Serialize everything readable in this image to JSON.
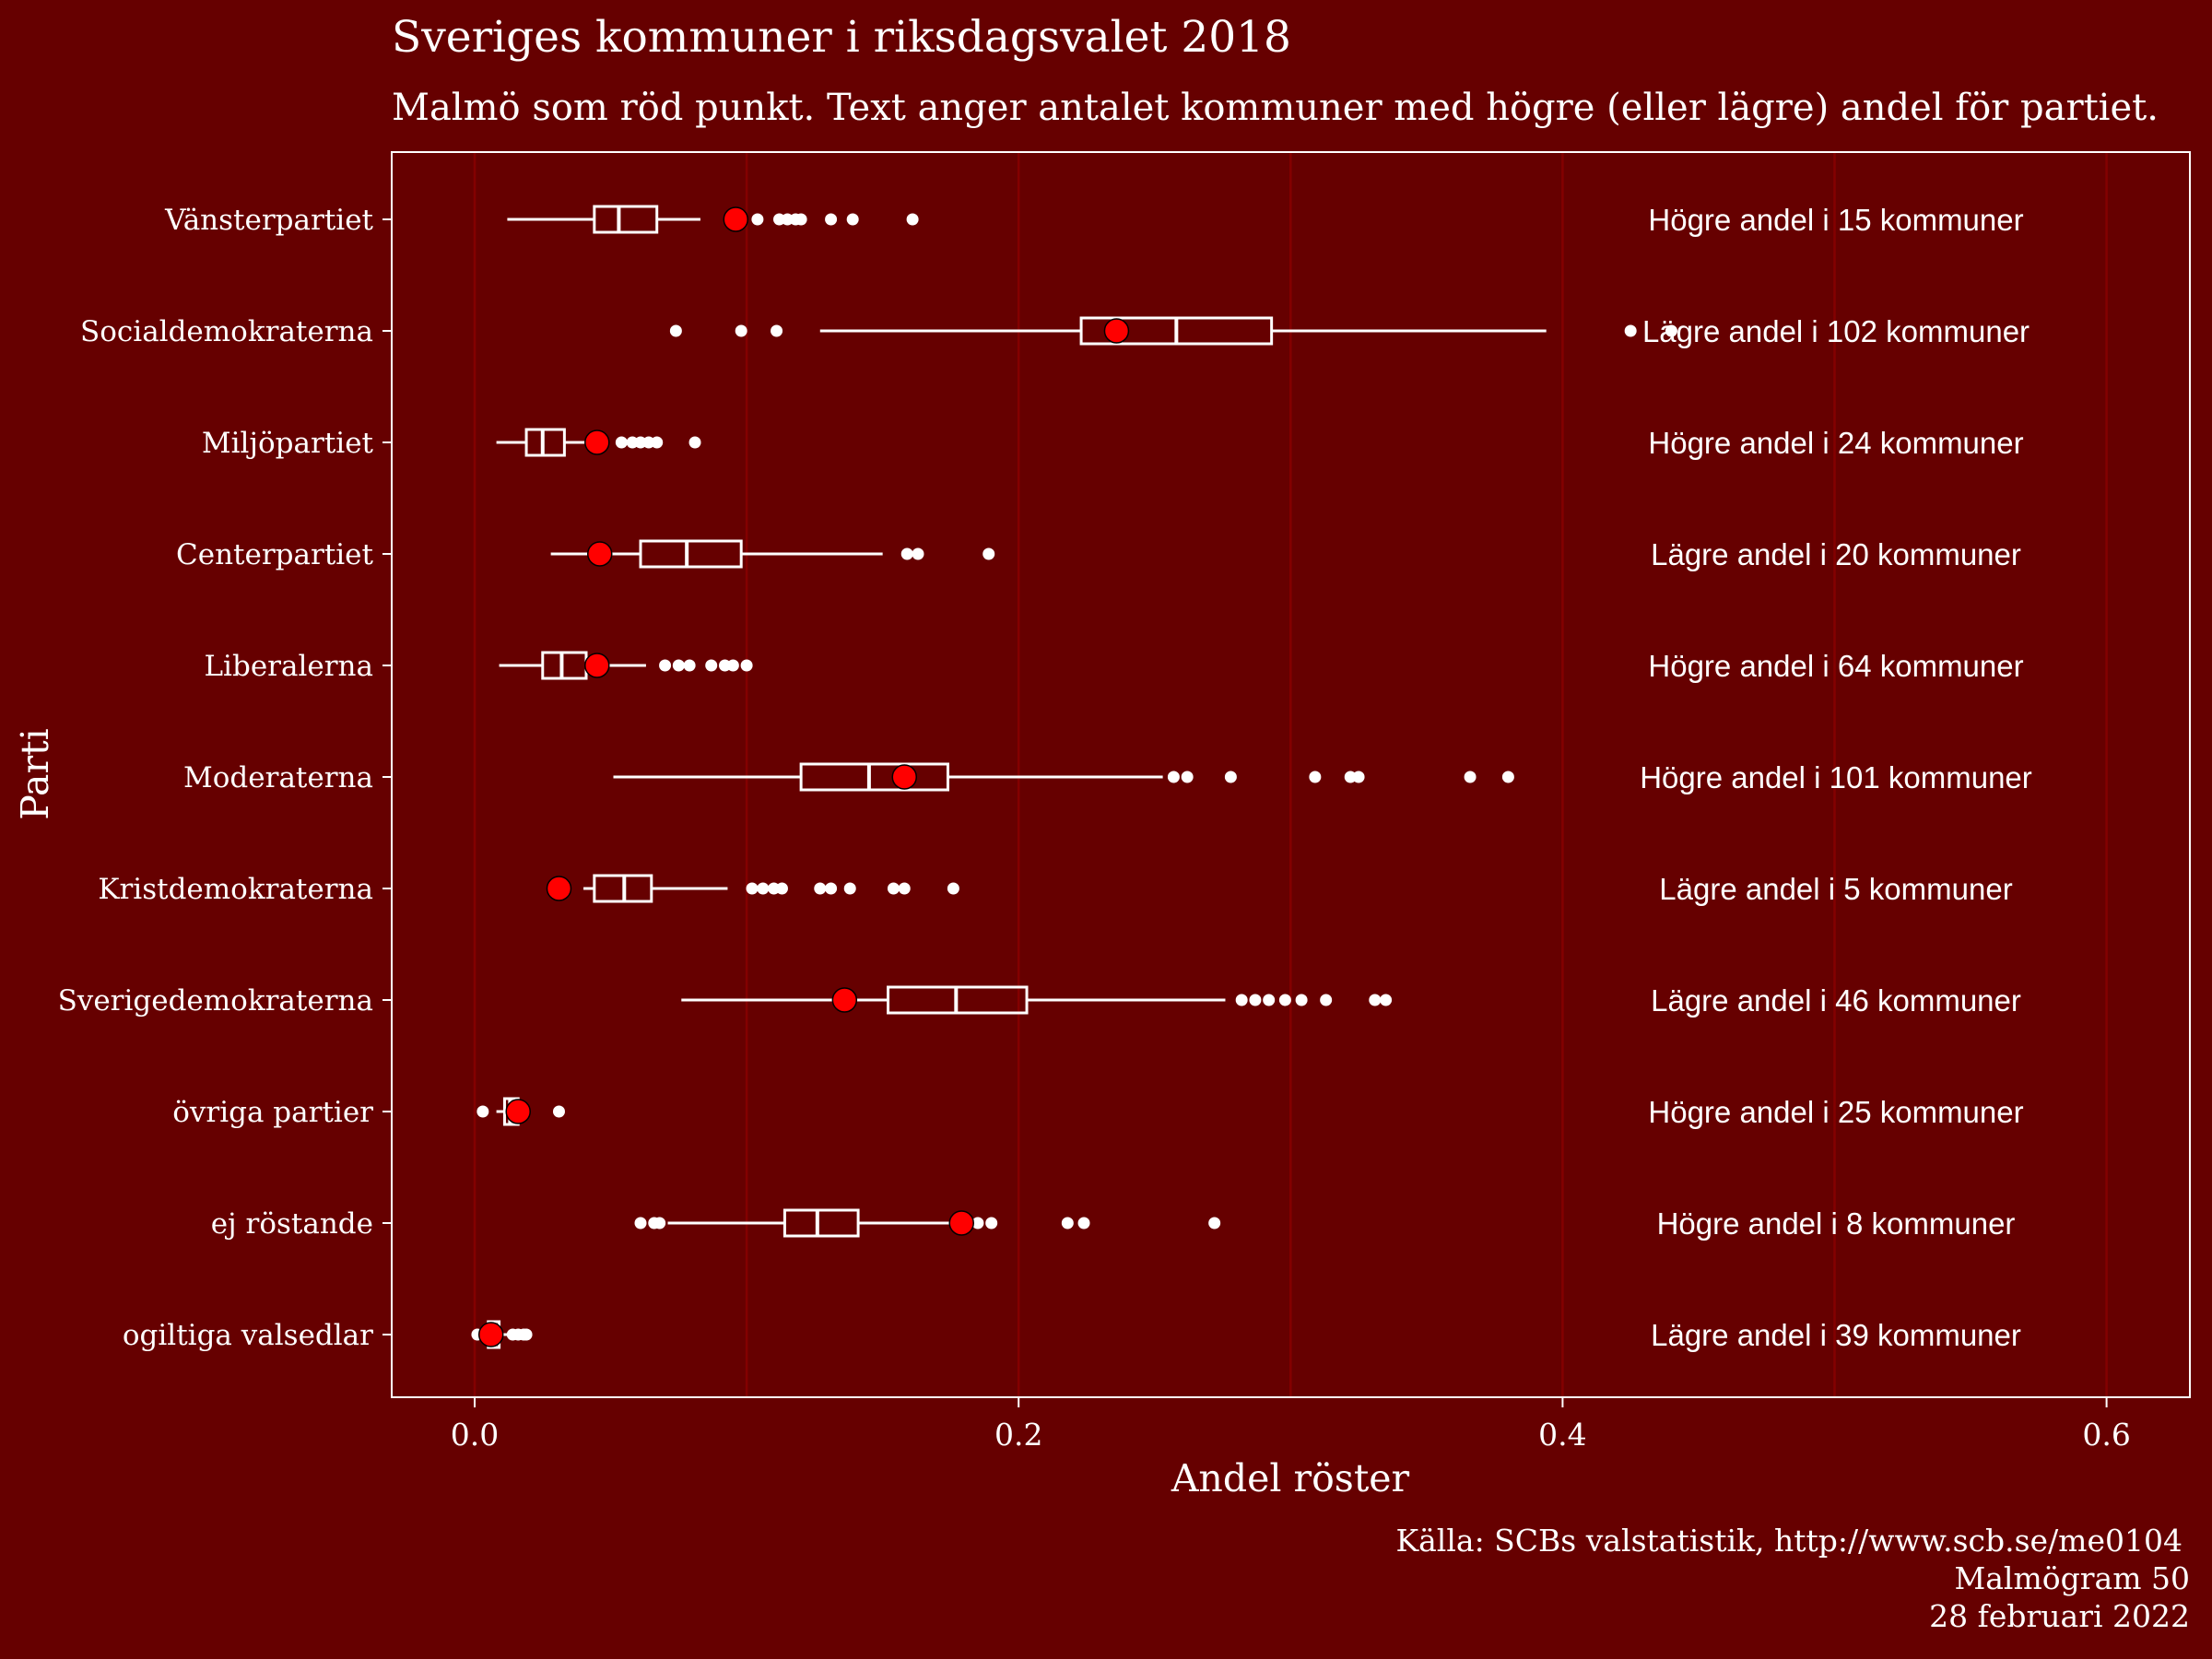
{
  "chart_data": {
    "type": "boxplot",
    "title": "Sveriges kommuner i riksdagsvalet 2018",
    "subtitle": "Malmö som röd punkt. Text anger antalet kommuner med högre (eller lägre) andel för partiet.",
    "xlabel": "Andel röster",
    "ylabel": "Parti",
    "xlim": [
      -0.03,
      0.63
    ],
    "xticks": [
      "0.0",
      "0.2",
      "0.4",
      "0.6"
    ],
    "xtick_values": [
      0.0,
      0.2,
      0.4,
      0.6
    ],
    "grid": "vertical",
    "categories": [
      {
        "name": "Vänsterpartiet",
        "whisker_low": 0.012,
        "q1": 0.044,
        "median": 0.053,
        "q3": 0.067,
        "whisker_high": 0.083,
        "outliers": [
          0.104,
          0.112,
          0.115,
          0.118,
          0.12,
          0.131,
          0.139,
          0.161
        ],
        "malmo": 0.096,
        "annotation": "Högre andel i 15 kommuner"
      },
      {
        "name": "Socialdemokraterna",
        "whisker_low": 0.127,
        "q1": 0.223,
        "median": 0.258,
        "q3": 0.293,
        "whisker_high": 0.394,
        "outliers": [
          0.074,
          0.098,
          0.111,
          0.425,
          0.44
        ],
        "malmo": 0.236,
        "annotation": "Lägre andel i 102 kommuner"
      },
      {
        "name": "Miljöpartiet",
        "whisker_low": 0.008,
        "q1": 0.019,
        "median": 0.025,
        "q3": 0.033,
        "whisker_high": 0.046,
        "outliers": [
          0.054,
          0.058,
          0.061,
          0.064,
          0.067,
          0.081
        ],
        "malmo": 0.045,
        "annotation": "Högre andel i 24 kommuner"
      },
      {
        "name": "Centerpartiet",
        "whisker_low": 0.028,
        "q1": 0.061,
        "median": 0.078,
        "q3": 0.098,
        "whisker_high": 0.15,
        "outliers": [
          0.159,
          0.163,
          0.189
        ],
        "malmo": 0.046,
        "annotation": "Lägre andel i 20 kommuner"
      },
      {
        "name": "Liberalerna",
        "whisker_low": 0.009,
        "q1": 0.025,
        "median": 0.032,
        "q3": 0.041,
        "whisker_high": 0.063,
        "outliers": [
          0.07,
          0.075,
          0.079,
          0.087,
          0.092,
          0.095,
          0.1
        ],
        "malmo": 0.045,
        "annotation": "Högre andel i 64 kommuner"
      },
      {
        "name": "Moderaterna",
        "whisker_low": 0.051,
        "q1": 0.12,
        "median": 0.145,
        "q3": 0.174,
        "whisker_high": 0.253,
        "outliers": [
          0.257,
          0.262,
          0.278,
          0.309,
          0.322,
          0.325,
          0.366,
          0.38
        ],
        "malmo": 0.158,
        "annotation": "Högre andel i 101 kommuner"
      },
      {
        "name": "Kristdemokraterna",
        "whisker_low": 0.04,
        "q1": 0.044,
        "median": 0.055,
        "q3": 0.065,
        "whisker_high": 0.093,
        "outliers": [
          0.102,
          0.106,
          0.11,
          0.113,
          0.127,
          0.131,
          0.138,
          0.154,
          0.158,
          0.176
        ],
        "malmo": 0.031,
        "annotation": "Lägre andel i 5 kommuner"
      },
      {
        "name": "Sverigedemokraterna",
        "whisker_low": 0.076,
        "q1": 0.152,
        "median": 0.177,
        "q3": 0.203,
        "whisker_high": 0.276,
        "outliers": [
          0.282,
          0.287,
          0.292,
          0.298,
          0.304,
          0.313,
          0.331,
          0.335
        ],
        "malmo": 0.136,
        "annotation": "Lägre andel i 46 kommuner"
      },
      {
        "name": "övriga partier",
        "whisker_low": 0.008,
        "q1": 0.011,
        "median": 0.013,
        "q3": 0.016,
        "whisker_high": 0.02,
        "outliers": [
          0.003,
          0.031
        ],
        "malmo": 0.016,
        "annotation": "Högre andel i 25 kommuner"
      },
      {
        "name": "ej röstande",
        "whisker_low": 0.071,
        "q1": 0.114,
        "median": 0.126,
        "q3": 0.141,
        "whisker_high": 0.178,
        "outliers": [
          0.061,
          0.066,
          0.068,
          0.185,
          0.19,
          0.218,
          0.224,
          0.272
        ],
        "malmo": 0.179,
        "annotation": "Högre andel i 8 kommuner"
      },
      {
        "name": "ogiltiga valsedlar",
        "whisker_low": 0.003,
        "q1": 0.005,
        "median": 0.007,
        "q3": 0.009,
        "whisker_high": 0.012,
        "outliers": [
          0.001,
          0.014,
          0.016,
          0.018,
          0.019
        ],
        "malmo": 0.006,
        "annotation": "Lägre andel i 39 kommuner"
      }
    ]
  },
  "caption": {
    "line1": "Källa: SCBs valstatistik, http://www.scb.se/me0104",
    "line2": "Malmögram 50",
    "line3": "28 februari 2022"
  },
  "colors": {
    "background": "#660000",
    "grid": "#8b0000",
    "box": "#ffffff",
    "malmo_point": "#ff0000"
  }
}
